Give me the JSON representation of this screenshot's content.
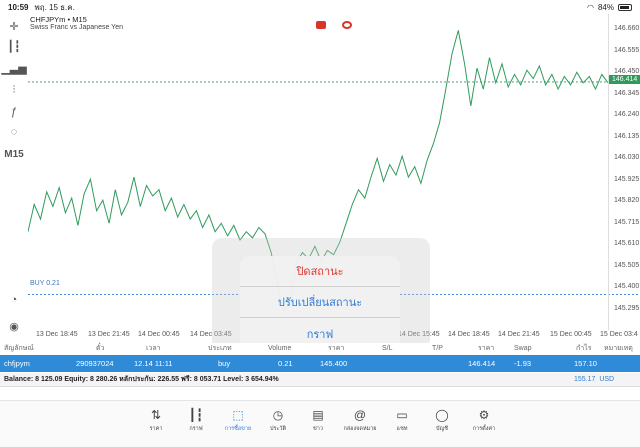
{
  "status": {
    "time": "10:59",
    "date": "พฤ. 15 ธ.ค.",
    "battery": "84%"
  },
  "chart": {
    "symbol": "CHFJPYm • M15",
    "description": "Swiss Franc vs Japanese Yen",
    "timeframe": "M15",
    "current_price_label": "146.414",
    "buy_level_label": "BUY 0.21",
    "colors": {
      "line": "#2e9b5b",
      "accent": "#2f7bd6",
      "destructive": "#e0352b"
    }
  },
  "chart_data": {
    "type": "line",
    "title": "CHFJPYm • M15",
    "y_ticks": [
      "146.660",
      "146.555",
      "146.450",
      "146.345",
      "146.240",
      "146.135",
      "146.030",
      "145.925",
      "145.820",
      "145.715",
      "145.610",
      "145.505",
      "145.400",
      "145.295"
    ],
    "x_ticks": [
      "13 Dec 18:45",
      "13 Dec 21:45",
      "14 Dec 00:45",
      "14 Dec 03:45",
      "14 Dec 15:45",
      "14 Dec 18:45",
      "14 Dec 21:45",
      "15 Dec 00:45",
      "15 Dec 03:4"
    ],
    "ylim": [
      145.25,
      146.7
    ],
    "current_price": 146.414,
    "buy_level": 145.4,
    "series": [
      {
        "values": [
          145.7,
          145.83,
          145.76,
          145.89,
          145.82,
          145.91,
          145.79,
          145.86,
          145.73,
          145.88,
          145.95,
          145.8,
          145.85,
          145.74,
          145.9,
          145.78,
          145.84,
          145.96,
          145.82,
          145.92,
          145.87,
          145.9,
          145.8,
          145.86,
          145.77,
          145.83,
          145.76,
          145.8,
          145.72,
          145.78,
          145.7,
          145.74,
          145.68,
          145.73,
          145.66,
          145.7,
          145.67,
          145.72,
          145.69,
          145.6,
          145.45,
          145.32,
          145.37,
          145.55,
          145.6,
          145.57,
          145.63,
          145.56,
          145.61,
          145.59,
          145.65,
          145.74,
          145.83,
          145.9,
          145.86,
          145.96,
          146.05,
          145.94,
          146.02,
          145.97,
          146.06,
          145.96,
          146.01,
          145.93,
          146.04,
          146.12,
          146.22,
          146.38,
          146.55,
          146.66,
          146.5,
          146.3,
          146.48,
          146.38,
          146.53,
          146.41,
          146.5,
          146.39,
          146.45,
          146.4,
          146.47,
          146.43,
          146.49,
          146.4,
          146.45,
          146.38,
          146.44,
          146.4,
          146.46,
          146.41,
          146.44,
          146.38,
          146.45,
          146.41
        ]
      }
    ]
  },
  "popup": {
    "items": [
      {
        "label": "ปิดสถานะ",
        "style": "destructive"
      },
      {
        "label": "ปรับเปลี่ยนสถานะ",
        "style": "normal"
      },
      {
        "label": "กราฟ",
        "style": "normal"
      }
    ]
  },
  "table": {
    "headers": [
      "สัญลักษณ์",
      "ตั๋ว",
      "เวลา",
      "ประเภท",
      "Volume",
      "ราคา",
      "S/L",
      "T/P",
      "ราคา",
      "Swap",
      "กำไร",
      "หมายเหตุ"
    ],
    "row": [
      "chfjpym",
      "290937024",
      "12.14 11:11",
      "buy",
      "0.21",
      "145.400",
      "",
      "",
      "146.414",
      "-1.93",
      "157.10",
      ""
    ]
  },
  "balance": {
    "text": "Balance: 8 125.09 Equity: 8 280.26 หลักประกัน: 226.55 ฟรี: 8 053.71 Level: 3 654.94%",
    "total": "155.17",
    "currency": "USD"
  },
  "tabs": [
    {
      "label": "ราคา",
      "icon": "arrows-icon"
    },
    {
      "label": "กราฟ",
      "icon": "candles-icon"
    },
    {
      "label": "การซื้อขาย",
      "icon": "trade-icon",
      "active": true
    },
    {
      "label": "ประวัติ",
      "icon": "history-icon"
    },
    {
      "label": "ข่าว",
      "icon": "news-icon"
    },
    {
      "label": "กล่องจดหมาย",
      "icon": "mail-icon"
    },
    {
      "label": "แชท",
      "icon": "chat-icon"
    },
    {
      "label": "บัญชี",
      "icon": "account-icon"
    },
    {
      "label": "การตั้งค่า",
      "icon": "settings-icon"
    }
  ]
}
